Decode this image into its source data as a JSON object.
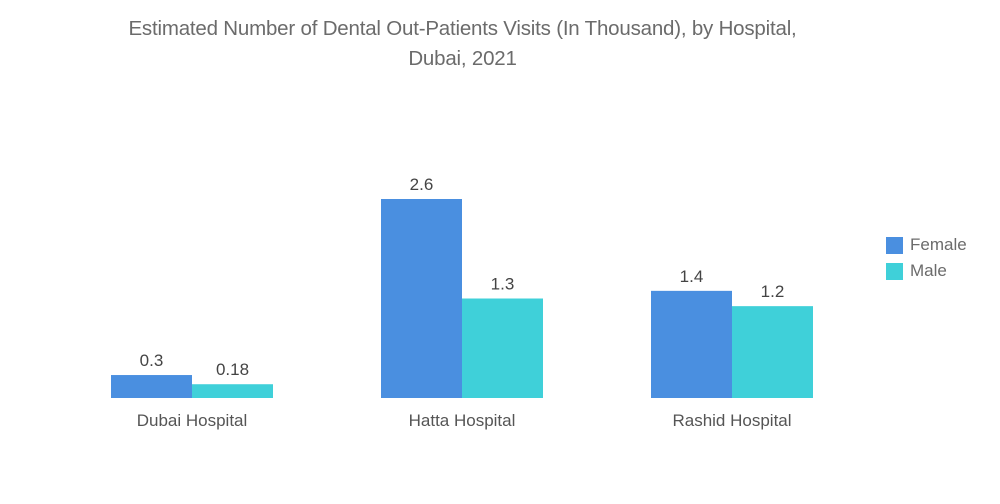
{
  "chart_data": {
    "type": "bar",
    "title": "Estimated Number of Dental Out-Patients Visits (In Thousand), by Hospital, Dubai, 2021",
    "title_lines": [
      "Estimated Number of Dental Out-Patients Visits (In Thousand), by Hospital,",
      "Dubai, 2021"
    ],
    "xlabel": "",
    "ylabel": "",
    "categories": [
      "Dubai Hospital",
      "Hatta Hospital",
      "Rashid Hospital"
    ],
    "series": [
      {
        "name": "Female",
        "color": "#4a8fe0",
        "values": [
          0.3,
          2.6,
          1.4
        ],
        "labels": [
          "0.3",
          "2.6",
          "1.4"
        ]
      },
      {
        "name": "Male",
        "color": "#3fd0d9",
        "values": [
          0.18,
          1.3,
          1.2
        ],
        "labels": [
          "0.18",
          "1.3",
          "1.2"
        ]
      }
    ],
    "ylim": [
      0,
      2.6
    ],
    "grid": false,
    "y_axis_visible": false,
    "data_labels": true,
    "legend_position": "right"
  }
}
